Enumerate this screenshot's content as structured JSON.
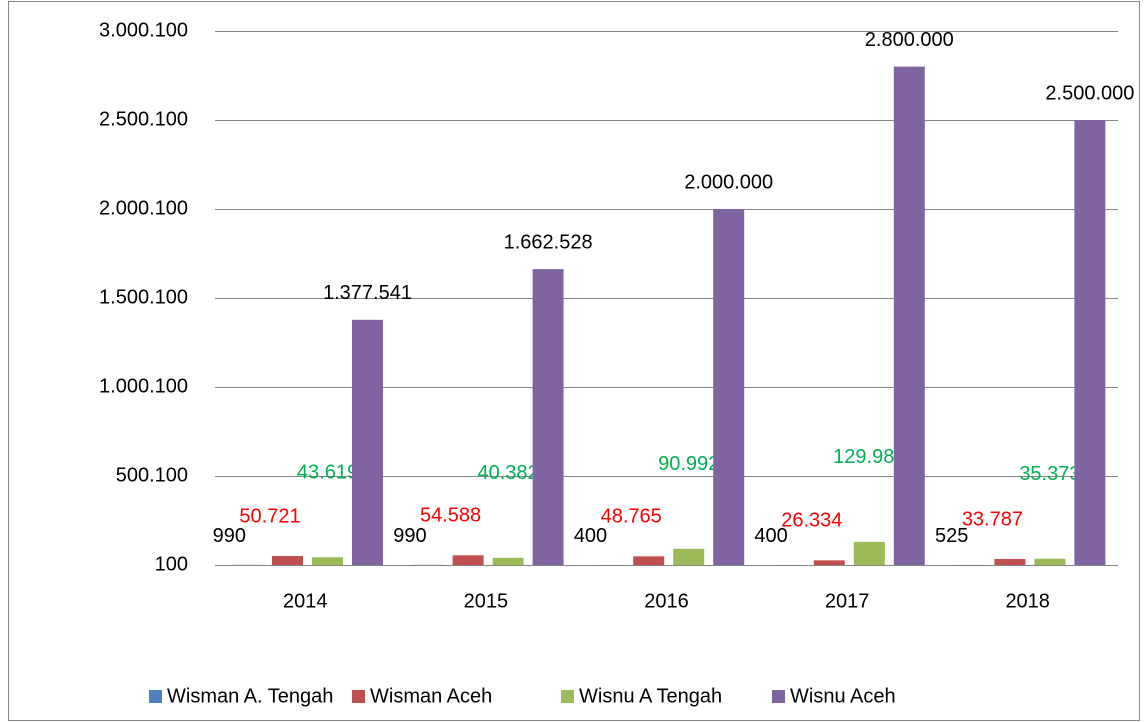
{
  "chart_data": {
    "type": "bar",
    "categories": [
      "2014",
      "2015",
      "2016",
      "2017",
      "2018"
    ],
    "series": [
      {
        "name": "Wisman A. Tengah",
        "color": "#4f81bd",
        "label_color": "#000000",
        "values": [
          990,
          990,
          400,
          400,
          525
        ]
      },
      {
        "name": "Wisman Aceh",
        "color": "#c0504d",
        "label_color": "#ff0000",
        "values": [
          50721,
          54588,
          48765,
          26334,
          33787
        ],
        "value_labels": [
          "50.721",
          "54.588",
          "48.765",
          "26.334",
          "33.787"
        ]
      },
      {
        "name": "Wisnu A Tengah",
        "color": "#9bbb59",
        "label_color": "#00b050",
        "values": [
          43619,
          40382,
          90992,
          129986,
          35373
        ],
        "value_labels": [
          "43.619",
          "40.382",
          "90.992",
          "129.986",
          "35.373"
        ]
      },
      {
        "name": "Wisnu Aceh",
        "color": "#8064a2",
        "label_color": "#000000",
        "values": [
          1377541,
          1662528,
          2000000,
          2800000,
          2500000
        ],
        "value_labels": [
          "1.377.541",
          "1.662.528",
          "2.000.000",
          "2.800.000",
          "2.500.000"
        ]
      }
    ],
    "ylim": [
      100,
      3000100
    ],
    "yticks": [
      100,
      {
        "value": 500100,
        "label": "500.100"
      },
      {
        "value": 1000100,
        "label": "1.000.100"
      },
      {
        "value": 1500100,
        "label": "1.500.100"
      },
      {
        "value": 2000100,
        "label": "2.000.100"
      },
      {
        "value": 2500100,
        "label": "2.500.100"
      },
      {
        "value": 3000100,
        "label": "3.000.100"
      }
    ],
    "grid": true,
    "legend": "bottom"
  }
}
